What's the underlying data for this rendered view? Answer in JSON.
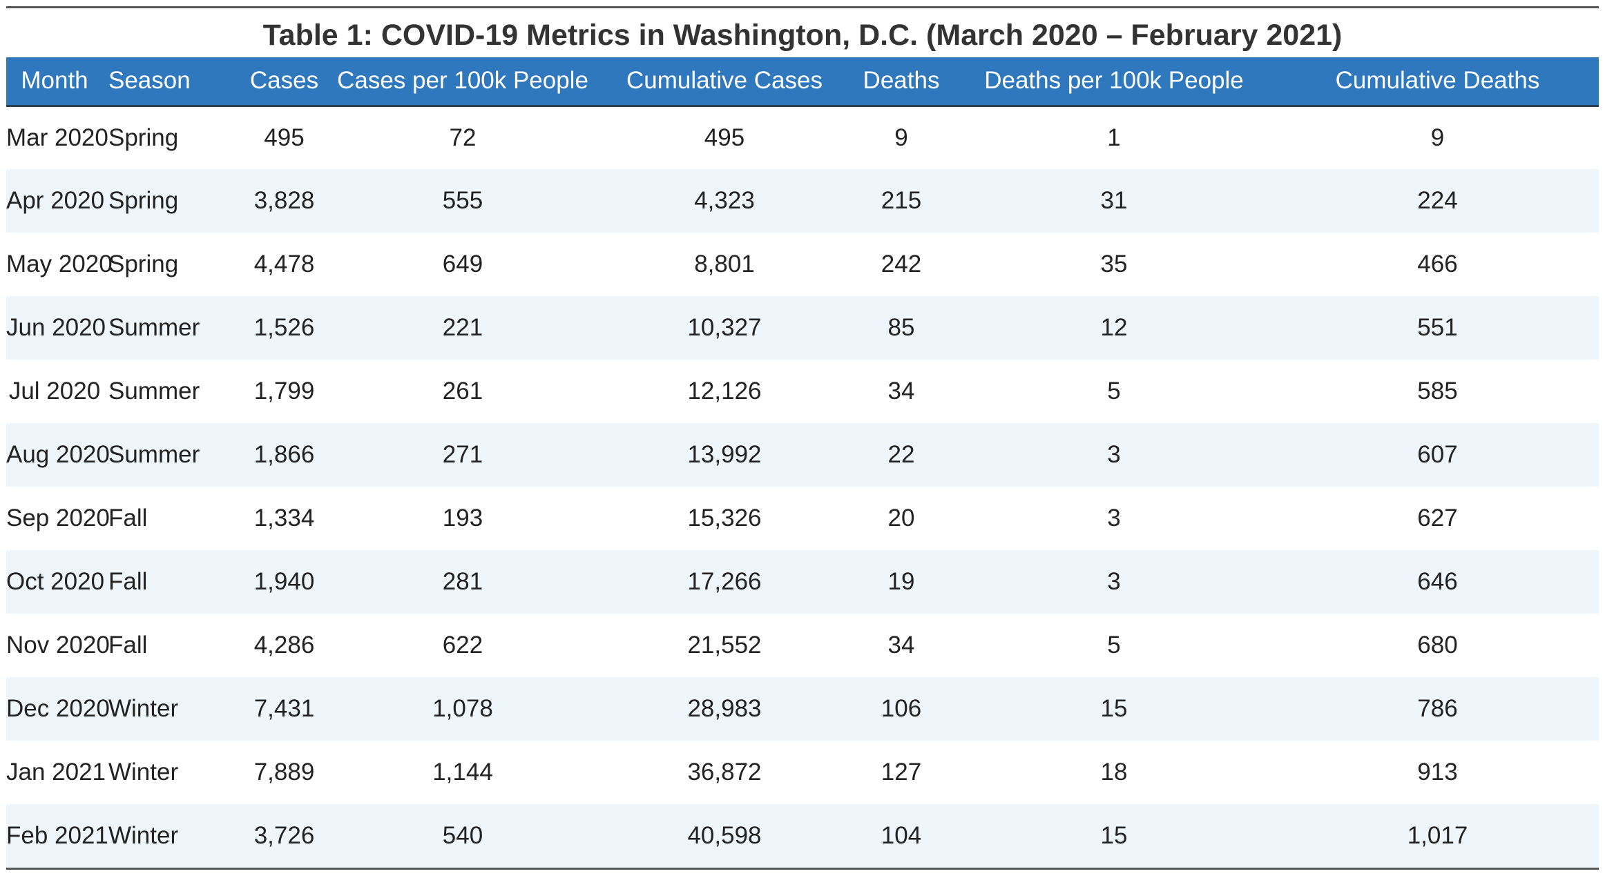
{
  "chart_data": {
    "type": "table",
    "title": "Table 1: COVID-19 Metrics in Washington, D.C. (March 2020 – February 2021)",
    "columns": [
      "Month",
      "Season",
      "Cases",
      "Cases per 100k People",
      "Cumulative Cases",
      "Deaths",
      "Deaths per 100k People",
      "Cumulative Deaths"
    ],
    "rows": [
      [
        "Mar 2020",
        "Spring",
        "495",
        "72",
        "495",
        "9",
        "1",
        "9"
      ],
      [
        "Apr 2020",
        "Spring",
        "3,828",
        "555",
        "4,323",
        "215",
        "31",
        "224"
      ],
      [
        "May 2020",
        "Spring",
        "4,478",
        "649",
        "8,801",
        "242",
        "35",
        "466"
      ],
      [
        "Jun 2020",
        "Summer",
        "1,526",
        "221",
        "10,327",
        "85",
        "12",
        "551"
      ],
      [
        "Jul 2020",
        "Summer",
        "1,799",
        "261",
        "12,126",
        "34",
        "5",
        "585"
      ],
      [
        "Aug 2020",
        "Summer",
        "1,866",
        "271",
        "13,992",
        "22",
        "3",
        "607"
      ],
      [
        "Sep 2020",
        "Fall",
        "1,334",
        "193",
        "15,326",
        "20",
        "3",
        "627"
      ],
      [
        "Oct 2020",
        "Fall",
        "1,940",
        "281",
        "17,266",
        "19",
        "3",
        "646"
      ],
      [
        "Nov 2020",
        "Fall",
        "4,286",
        "622",
        "21,552",
        "34",
        "5",
        "680"
      ],
      [
        "Dec 2020",
        "Winter",
        "7,431",
        "1,078",
        "28,983",
        "106",
        "15",
        "786"
      ],
      [
        "Jan 2021",
        "Winter",
        "7,889",
        "1,144",
        "36,872",
        "127",
        "18",
        "913"
      ],
      [
        "Feb 2021",
        "Winter",
        "3,726",
        "540",
        "40,598",
        "104",
        "15",
        "1,017"
      ]
    ]
  },
  "colors": {
    "header_background": "#2f78bd",
    "header_text": "#ffffff",
    "stripe_row": "#eff6fb",
    "rule": "#555555"
  }
}
